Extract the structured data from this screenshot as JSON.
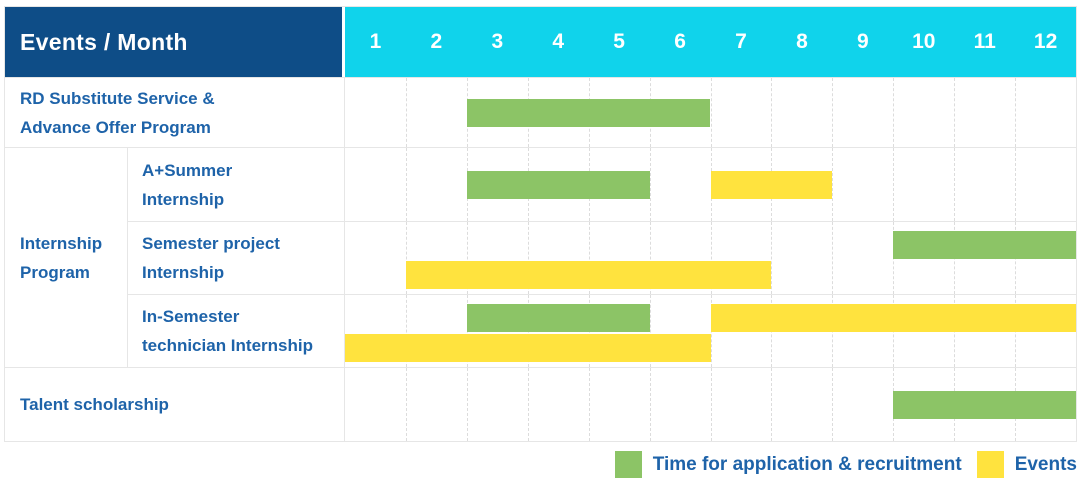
{
  "chart_data": {
    "type": "gantt",
    "title": "Events / Month",
    "xlabel": "Month",
    "months": [
      "1",
      "2",
      "3",
      "4",
      "5",
      "6",
      "7",
      "8",
      "9",
      "10",
      "11",
      "12"
    ],
    "x_range": [
      1,
      12
    ],
    "group_label": "Internship\nProgram",
    "colors": {
      "navy": "#0E4D87",
      "cyan": "#10D3EB",
      "green": "#8CC466",
      "yellow": "#FFE33E",
      "text_blue": "#1E63A9",
      "grid": "#e6e6e6",
      "grid_dash": "#dcdcdc"
    },
    "legend": [
      {
        "key": "application",
        "label": "Time for application & recruitment",
        "color": "#8CC466"
      },
      {
        "key": "events",
        "label": "Events",
        "color": "#FFE33E"
      }
    ],
    "rows": [
      {
        "label": "RD Substitute Service &\nAdvance Offer Program",
        "group": "",
        "bars": [
          {
            "type": "application",
            "start": 3,
            "end": 6,
            "lane": "center"
          }
        ]
      },
      {
        "label": "A+Summer\nInternship",
        "group": "Internship Program",
        "bars": [
          {
            "type": "application",
            "start": 3,
            "end": 5,
            "lane": "center"
          },
          {
            "type": "events",
            "start": 7,
            "end": 8,
            "lane": "center"
          }
        ]
      },
      {
        "label": "Semester project\nInternship",
        "group": "Internship Program",
        "bars": [
          {
            "type": "application",
            "start": 10,
            "end": 12,
            "lane": "top"
          },
          {
            "type": "events",
            "start": 2,
            "end": 7,
            "lane": "bottom"
          }
        ]
      },
      {
        "label": "In-Semester\ntechnician Internship",
        "group": "Internship Program",
        "bars": [
          {
            "type": "application",
            "start": 3,
            "end": 5,
            "lane": "top"
          },
          {
            "type": "events",
            "start": 7,
            "end": 12,
            "lane": "top"
          },
          {
            "type": "events",
            "start": 1,
            "end": 6,
            "lane": "bottom"
          }
        ]
      },
      {
        "label": "Talent scholarship",
        "group": "",
        "bars": [
          {
            "type": "application",
            "start": 10,
            "end": 12,
            "lane": "center"
          }
        ]
      }
    ]
  }
}
